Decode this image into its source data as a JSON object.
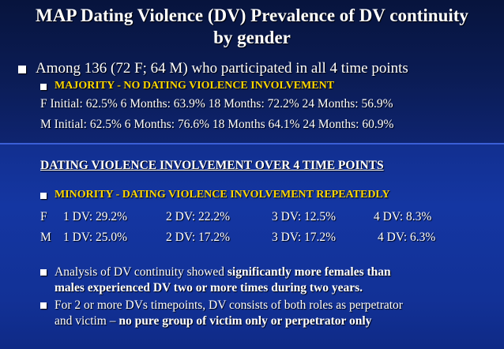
{
  "slide": {
    "title_line1": "MAP Dating Violence (DV) Prevalence of DV continuity",
    "title_line2": "by gender",
    "bullet1": "Among 136 (72 F; 64 M) who participated in all 4 time points",
    "majority_label": "MAJORITY  - NO DATING VIOLENCE INVOLVEMENT",
    "f_row_no_dv": "F Initial: 62.5%   6 Months: 63.9%  18 Months: 72.2%   24 Months: 56.9%",
    "m_row_no_dv": "M Initial: 62.5%  6 Months: 76.6%   18 Months 64.1%   24 Months: 60.9%",
    "involvement_heading": "DATING VIOLENCE INVOLVEMENT OVER 4 TIME POINTS",
    "minority_label": "MINORITY - DATING VIOLENCE INVOLVEMENT  REPEATEDLY",
    "f_dv": {
      "gender": "F",
      "dv1": "1 DV: 29.2%",
      "dv2": "2 DV: 22.2%",
      "dv3": "3 DV: 12.5%",
      "dv4": "4 DV: 8.3%"
    },
    "m_dv": {
      "gender": "M",
      "dv1": "1 DV: 25.0%",
      "dv2": "2 DV: 17.2%",
      "dv3": "3 DV: 17.2%",
      "dv4": "4 DV: 6.3%"
    },
    "analysis_prefix": "Analysis of DV continuity showed ",
    "analysis_bold_1": "significantly more females than",
    "analysis_bold_2": "males experienced DV two or more times during two years.",
    "roles_line1": "For 2 or more DVs timepoints, DV consists of both roles as perpetrator",
    "roles_line2_prefix": "and victim – ",
    "roles_line2_bold": "no pure group of victim only or perpetrator only"
  },
  "colors": {
    "accent_gold": "#ffd700",
    "text": "#ffffff",
    "background_dark": "#0b1c55",
    "background_blue": "#1436a2"
  }
}
